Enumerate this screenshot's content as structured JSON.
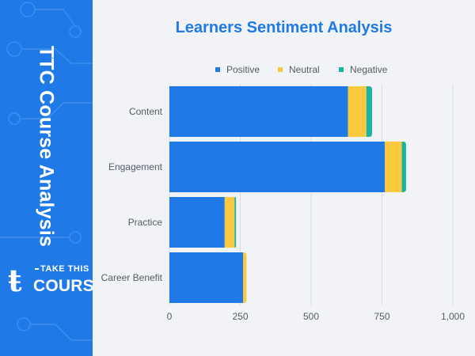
{
  "sidebar": {
    "brand_text": "TTC Course Analysis",
    "logo_line1": "TAKE THIS",
    "logo_line2": "COURSE",
    "color": "#1f7ae8"
  },
  "chart_data": {
    "type": "bar",
    "orientation": "horizontal",
    "stacked": true,
    "title": "Learners Sentiment Analysis",
    "xlabel": "",
    "ylabel": "",
    "categories": [
      "Content",
      "Engagement",
      "Practice",
      "Career Benefit"
    ],
    "series": [
      {
        "name": "Positive",
        "color": "#1f7ae8",
        "values": [
          630,
          760,
          195,
          260
        ]
      },
      {
        "name": "Neutral",
        "color": "#fbc93f",
        "values": [
          65,
          60,
          35,
          12
        ]
      },
      {
        "name": "Negative",
        "color": "#1bb3a1",
        "values": [
          20,
          15,
          5,
          0
        ]
      }
    ],
    "xlim": [
      0,
      1000
    ],
    "xticks": [
      0,
      250,
      500,
      750,
      1000
    ],
    "xtick_labels": [
      "0",
      "250",
      "500",
      "750",
      "1,000"
    ],
    "grid": true,
    "legend": "top"
  }
}
